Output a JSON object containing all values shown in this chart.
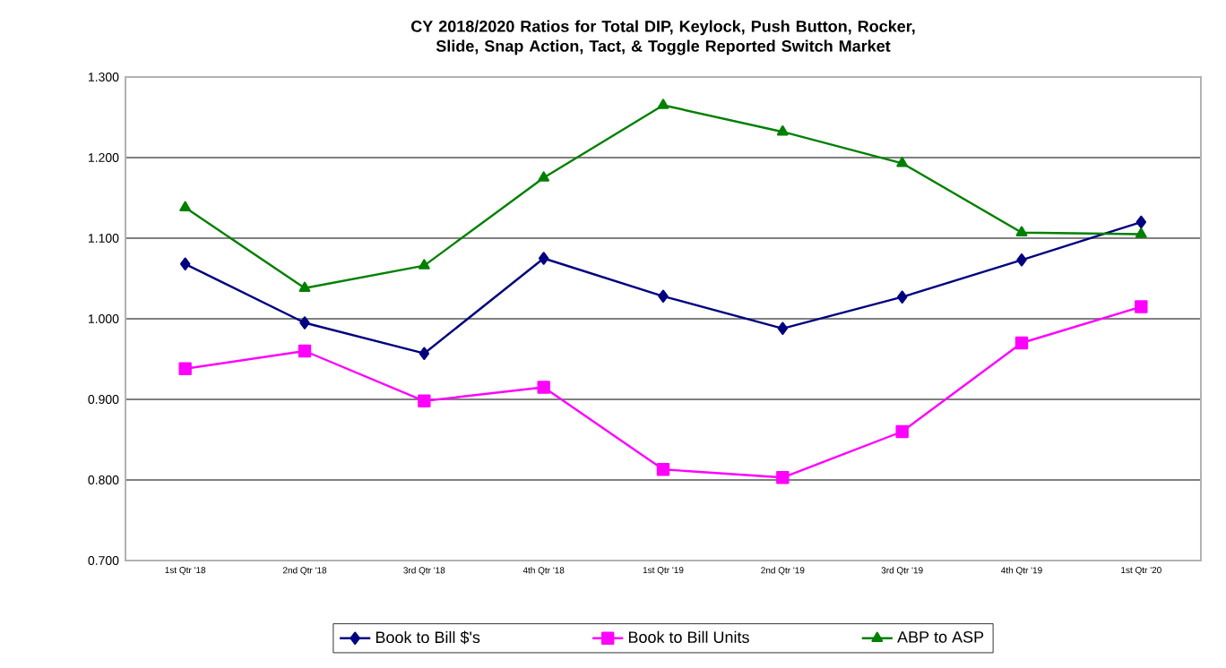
{
  "chart_data": {
    "type": "line",
    "title": "CY 2018/2020 Ratios for Total DIP, Keylock, Push Button, Rocker, Slide, Snap Action, Tact, & Toggle Reported Switch Market",
    "categories": [
      "1st Qtr '18",
      "2nd Qtr '18",
      "3rd Qtr '18",
      "4th Qtr '18",
      "1st Qtr '19",
      "2nd Qtr '19",
      "3rd Qtr '19",
      "4th Qtr '19",
      "1st Qtr '20"
    ],
    "series": [
      {
        "name": "Book to Bill $'s",
        "color": "#000080",
        "marker": "diamond",
        "values": [
          1.068,
          0.995,
          0.957,
          1.075,
          1.028,
          0.988,
          1.027,
          1.073,
          1.12
        ]
      },
      {
        "name": "Book to Bill Units",
        "color": "#ff00ff",
        "marker": "square",
        "values": [
          0.938,
          0.96,
          0.898,
          0.915,
          0.813,
          0.803,
          0.86,
          0.97,
          1.015
        ]
      },
      {
        "name": "ABP to ASP",
        "color": "#008000",
        "marker": "triangle",
        "values": [
          1.138,
          1.038,
          1.066,
          1.175,
          1.265,
          1.232,
          1.193,
          1.107,
          1.105
        ]
      }
    ],
    "ylim": [
      0.7,
      1.3
    ],
    "yticks": [
      {
        "value": 0.7,
        "label": "0.700"
      },
      {
        "value": 0.8,
        "label": "0.800"
      },
      {
        "value": 0.9,
        "label": "0.900"
      },
      {
        "value": 1.0,
        "label": "1.000"
      },
      {
        "value": 1.1,
        "label": "1.100"
      },
      {
        "value": 1.2,
        "label": "1.200"
      },
      {
        "value": 1.3,
        "label": "1.300"
      }
    ],
    "grid": "y",
    "legend": "bottom",
    "line_style": "solid"
  }
}
